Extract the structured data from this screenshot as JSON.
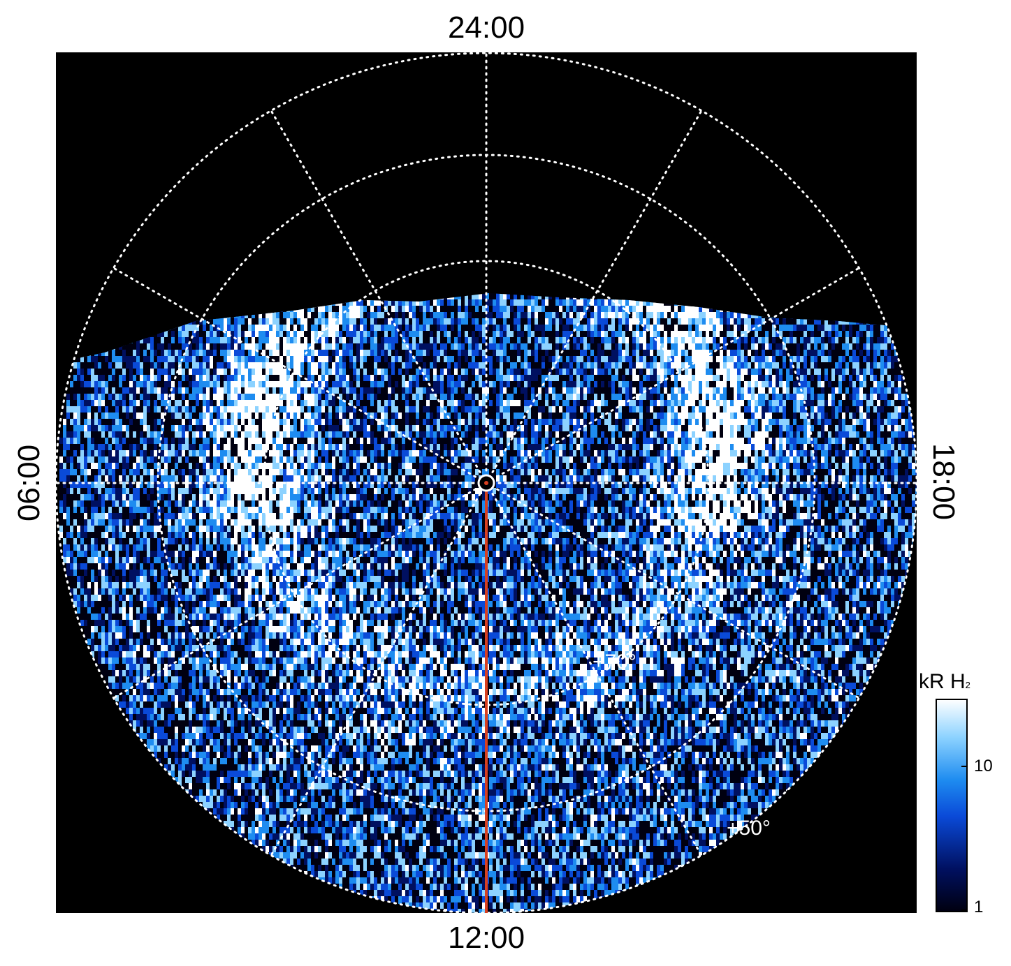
{
  "image": {
    "description_kind": "polar auroral projection",
    "local_time_labels": {
      "top": "24:00",
      "bottom": "12:00",
      "left": "06:00",
      "right": "18:00"
    },
    "latitude_labels": {
      "inner": "+70°",
      "outer": "+50°"
    },
    "colorbar": {
      "unit_main": "kR H",
      "unit_sub": "2",
      "ticks": [
        "10",
        "1"
      ],
      "colors": [
        "#000010",
        "#001060",
        "#0a4ad8",
        "#1e8cf0",
        "#8cd2ff",
        "#ffffff"
      ]
    },
    "colors": {
      "background": "#000000",
      "grid": "#ffffff",
      "meridian_line": "#d84020"
    }
  }
}
